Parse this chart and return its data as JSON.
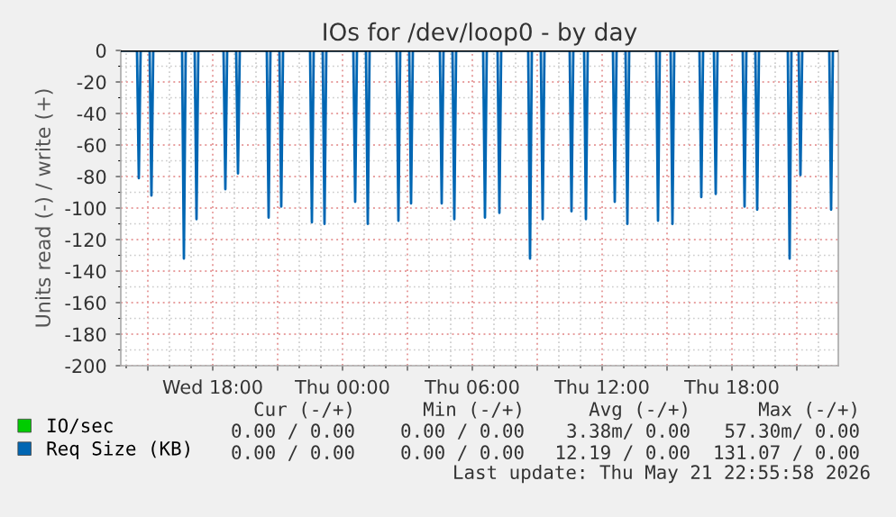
{
  "chart_data": {
    "type": "line",
    "title": "IOs for /dev/loop0 - by day",
    "ylabel": "Units read (-) / write (+)",
    "xlim": [
      "2026-05-20T13:45",
      "2026-05-21T22:55"
    ],
    "xticks": [
      {
        "value": "2026-05-20T15:00",
        "label": null
      },
      {
        "value": "2026-05-20T18:00",
        "label": "Wed 18:00"
      },
      {
        "value": "2026-05-20T21:00",
        "label": null
      },
      {
        "value": "2026-05-21T00:00",
        "label": "Thu 00:00"
      },
      {
        "value": "2026-05-21T03:00",
        "label": null
      },
      {
        "value": "2026-05-21T06:00",
        "label": "Thu 06:00"
      },
      {
        "value": "2026-05-21T09:00",
        "label": null
      },
      {
        "value": "2026-05-21T12:00",
        "label": "Thu 12:00"
      },
      {
        "value": "2026-05-21T15:00",
        "label": null
      },
      {
        "value": "2026-05-21T18:00",
        "label": "Thu 18:00"
      },
      {
        "value": "2026-05-21T21:00",
        "label": null
      }
    ],
    "ylim": [
      -200,
      0
    ],
    "yticks": [
      -200,
      -180,
      -160,
      -140,
      -120,
      -100,
      -80,
      -60,
      -40,
      -20,
      0
    ],
    "grid": true,
    "legend": "bottom",
    "ref_lines": [
      {
        "axis": "y",
        "value": 0,
        "color": "#000000"
      }
    ],
    "series": [
      {
        "name": "IO/sec",
        "color": "#00cc00"
      },
      {
        "name": "Req Size (KB)",
        "color": "#0066b3",
        "x": [
          "2026-05-20T13:45",
          "2026-05-20T14:30",
          "2026-05-20T14:35",
          "2026-05-20T14:40",
          "2026-05-20T15:05",
          "2026-05-20T15:10",
          "2026-05-20T15:15",
          "2026-05-20T16:35",
          "2026-05-20T16:40",
          "2026-05-20T16:45",
          "2026-05-20T17:10",
          "2026-05-20T17:15",
          "2026-05-20T17:20",
          "2026-05-20T18:30",
          "2026-05-20T18:35",
          "2026-05-20T18:40",
          "2026-05-20T19:05",
          "2026-05-20T19:10",
          "2026-05-20T19:15",
          "2026-05-20T20:30",
          "2026-05-20T20:35",
          "2026-05-20T20:40",
          "2026-05-20T21:05",
          "2026-05-20T21:10",
          "2026-05-20T21:15",
          "2026-05-20T22:30",
          "2026-05-20T22:35",
          "2026-05-20T22:40",
          "2026-05-20T23:05",
          "2026-05-20T23:10",
          "2026-05-20T23:15",
          "2026-05-21T00:30",
          "2026-05-21T00:35",
          "2026-05-21T00:40",
          "2026-05-21T01:05",
          "2026-05-21T01:10",
          "2026-05-21T01:15",
          "2026-05-21T02:30",
          "2026-05-21T02:35",
          "2026-05-21T02:40",
          "2026-05-21T03:05",
          "2026-05-21T03:10",
          "2026-05-21T03:15",
          "2026-05-21T04:30",
          "2026-05-21T04:35",
          "2026-05-21T04:40",
          "2026-05-21T05:05",
          "2026-05-21T05:10",
          "2026-05-21T05:15",
          "2026-05-21T06:30",
          "2026-05-21T06:35",
          "2026-05-21T06:40",
          "2026-05-21T07:10",
          "2026-05-21T07:15",
          "2026-05-21T07:20",
          "2026-05-21T08:35",
          "2026-05-21T08:40",
          "2026-05-21T08:45",
          "2026-05-21T09:10",
          "2026-05-21T09:15",
          "2026-05-21T09:20",
          "2026-05-21T10:30",
          "2026-05-21T10:35",
          "2026-05-21T10:40",
          "2026-05-21T11:10",
          "2026-05-21T11:15",
          "2026-05-21T11:20",
          "2026-05-21T12:30",
          "2026-05-21T12:35",
          "2026-05-21T12:40",
          "2026-05-21T13:05",
          "2026-05-21T13:10",
          "2026-05-21T13:15",
          "2026-05-21T14:30",
          "2026-05-21T14:35",
          "2026-05-21T14:40",
          "2026-05-21T15:10",
          "2026-05-21T15:15",
          "2026-05-21T15:20",
          "2026-05-21T16:30",
          "2026-05-21T16:35",
          "2026-05-21T16:40",
          "2026-05-21T17:10",
          "2026-05-21T17:15",
          "2026-05-21T17:20",
          "2026-05-21T18:30",
          "2026-05-21T18:35",
          "2026-05-21T18:40",
          "2026-05-21T19:05",
          "2026-05-21T19:10",
          "2026-05-21T19:15",
          "2026-05-21T20:35",
          "2026-05-21T20:40",
          "2026-05-21T20:45",
          "2026-05-21T21:05",
          "2026-05-21T21:10",
          "2026-05-21T21:15",
          "2026-05-21T22:30",
          "2026-05-21T22:35",
          "2026-05-21T22:40",
          "2026-05-21T22:55"
        ],
        "values": [
          0,
          0,
          -81,
          0,
          0,
          -92,
          0,
          0,
          -132,
          0,
          0,
          -107,
          0,
          0,
          -88,
          0,
          0,
          -78,
          0,
          0,
          -106,
          0,
          0,
          -99,
          0,
          0,
          -109,
          0,
          0,
          -110,
          0,
          0,
          -96,
          0,
          0,
          -110,
          0,
          0,
          -108,
          0,
          0,
          -97,
          0,
          0,
          -97,
          0,
          0,
          -107,
          0,
          0,
          -106,
          0,
          0,
          -103,
          0,
          0,
          -132,
          0,
          0,
          -107,
          0,
          0,
          -102,
          0,
          0,
          -107,
          0,
          0,
          -96,
          0,
          0,
          -110,
          0,
          0,
          -108,
          0,
          0,
          -110,
          0,
          0,
          -93,
          0,
          0,
          -91,
          0,
          0,
          -99,
          0,
          0,
          -101,
          0,
          0,
          -132,
          0,
          0,
          -79,
          0,
          0,
          -101,
          0,
          0
        ]
      }
    ],
    "annotations": [
      "Cur (-/+)",
      "Min (-/+)",
      "Avg (-/+)",
      "Max (-/+)",
      "0.00 / 0.00",
      "0.00 / 0.00",
      "3.38m/ 0.00",
      "57.30m/ 0.00",
      "0.00 / 0.00",
      "0.00 / 0.00",
      "12.19 / 0.00",
      "131.07 / 0.00",
      "Last update: Thu May 21 22:55:58 2026"
    ]
  }
}
